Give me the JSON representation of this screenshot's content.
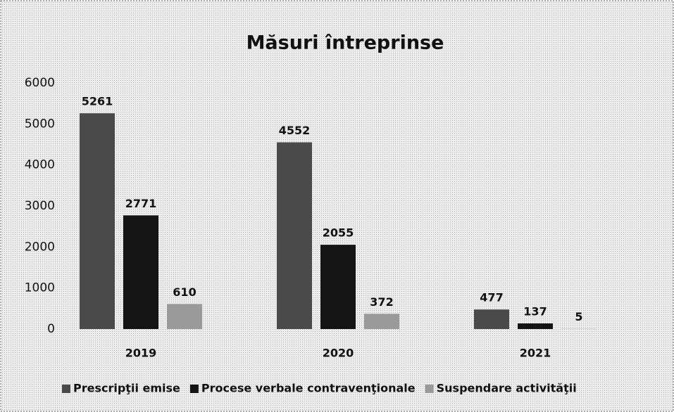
{
  "chart_data": {
    "type": "bar",
    "title": "Măsuri întreprinse",
    "categories": [
      "2019",
      "2020",
      "2021"
    ],
    "series": [
      {
        "name": "Prescripţii emise",
        "color": "#4a4a4a",
        "values": [
          5261,
          4552,
          477
        ]
      },
      {
        "name": "Procese verbale contravenţionale",
        "color": "#141414",
        "values": [
          2771,
          2055,
          137
        ]
      },
      {
        "name": "Suspendare activităţii",
        "color": "#9a9a9a",
        "values": [
          610,
          372,
          5
        ]
      }
    ],
    "ylim": [
      0,
      6000
    ],
    "yticks": [
      0,
      1000,
      2000,
      3000,
      4000,
      5000,
      6000
    ],
    "grid": false,
    "legend": "bottom"
  }
}
